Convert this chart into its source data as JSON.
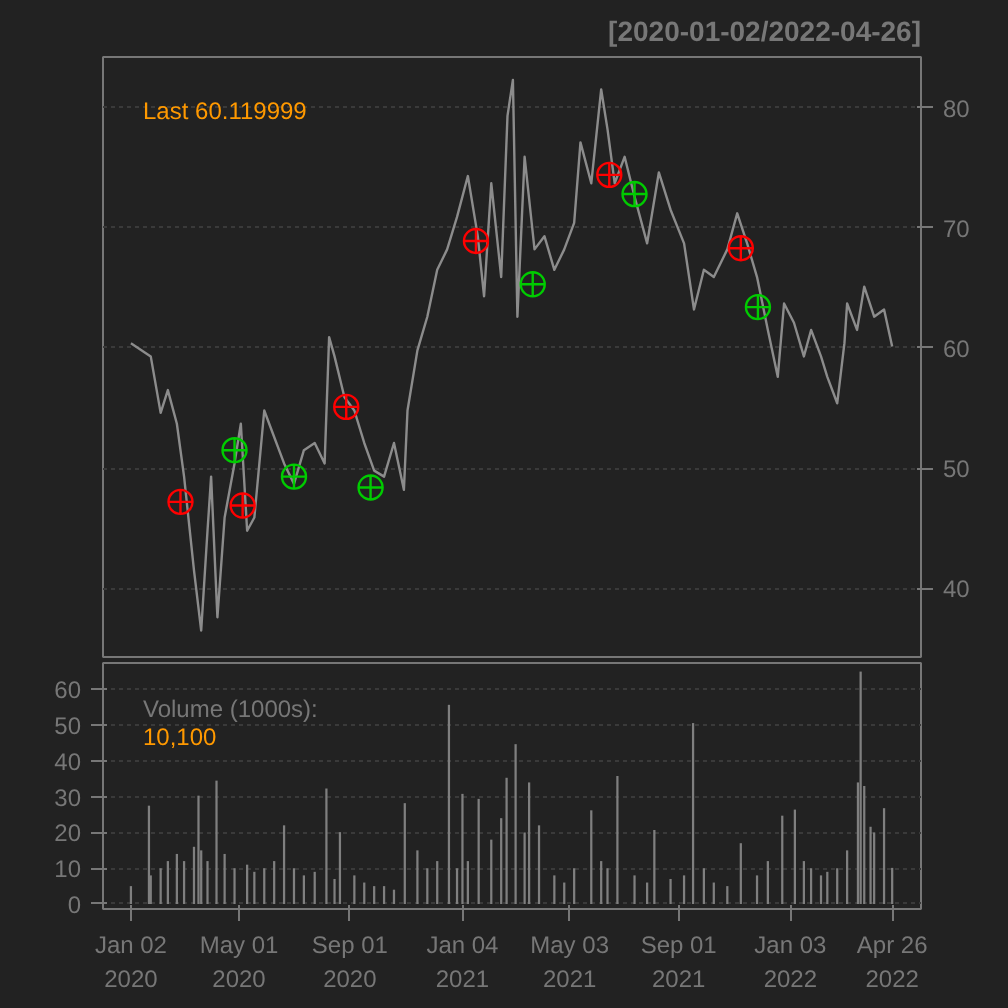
{
  "chart_data": [
    {
      "type": "line",
      "title": "[2020-01-02/2022-04-26]",
      "annotations": [
        "Last 60.119999"
      ],
      "xlim": [
        "2019-12-02",
        "2022-05-28"
      ],
      "ylim": [
        34.3,
        84.2
      ],
      "yticks": [
        40,
        50,
        60,
        70,
        80
      ],
      "grid": "y",
      "tick_labels": "y",
      "series": [
        {
          "type": "line",
          "color": "#8c8c8c",
          "x": [
            "2020-01-02",
            "2020-01-24",
            "2020-02-04",
            "2020-02-12",
            "2020-02-22",
            "2020-03-01",
            "2020-03-12",
            "2020-03-20",
            "2020-03-27",
            "2020-03-31",
            "2020-04-07",
            "2020-04-15",
            "2020-04-26",
            "2020-05-03",
            "2020-05-10",
            "2020-05-18",
            "2020-05-29",
            "2020-06-09",
            "2020-06-20",
            "2020-07-01",
            "2020-07-12",
            "2020-07-24",
            "2020-08-04",
            "2020-08-09",
            "2020-08-15",
            "2020-08-26",
            "2020-09-06",
            "2020-09-17",
            "2020-09-28",
            "2020-10-09",
            "2020-10-20",
            "2020-10-31",
            "2020-11-04",
            "2020-11-15",
            "2020-11-26",
            "2020-12-07",
            "2020-12-18",
            "2020-12-29",
            "2021-01-10",
            "2021-01-21",
            "2021-01-28",
            "2021-02-05",
            "2021-02-16",
            "2021-02-23",
            "2021-03-01",
            "2021-03-06",
            "2021-03-14",
            "2021-03-25",
            "2021-04-05",
            "2021-04-16",
            "2021-04-27",
            "2021-05-08",
            "2021-05-15",
            "2021-05-27",
            "2021-06-07",
            "2021-06-14",
            "2021-06-22",
            "2021-07-03",
            "2021-07-14",
            "2021-07-28",
            "2021-08-10",
            "2021-08-23",
            "2021-09-07",
            "2021-09-18",
            "2021-09-29",
            "2021-10-10",
            "2021-10-25",
            "2021-11-05",
            "2021-11-16",
            "2021-11-27",
            "2021-12-09",
            "2021-12-20",
            "2021-12-27",
            "2022-01-07",
            "2022-01-18",
            "2022-01-26",
            "2022-02-06",
            "2022-02-13",
            "2022-02-24",
            "2022-03-04",
            "2022-03-07",
            "2022-03-18",
            "2022-03-26",
            "2022-04-06",
            "2022-04-17",
            "2022-04-26"
          ],
          "values": [
            60.4,
            59.3,
            54.6,
            56.5,
            53.7,
            49.3,
            41.5,
            36.5,
            44.8,
            49.3,
            37.6,
            45.9,
            50.4,
            53.7,
            44.8,
            45.9,
            54.8,
            52.6,
            50.4,
            48.7,
            51.5,
            52.1,
            50.4,
            60.9,
            59.3,
            55.9,
            54.8,
            52.1,
            49.8,
            49.3,
            52.1,
            48.2,
            54.8,
            59.8,
            62.6,
            66.5,
            68.2,
            70.9,
            74.3,
            69.3,
            64.3,
            73.7,
            65.9,
            79.3,
            82.3,
            62.6,
            75.9,
            68.2,
            69.3,
            66.5,
            68.2,
            70.4,
            77.1,
            73.7,
            81.5,
            78.2,
            73.7,
            75.9,
            72.6,
            68.7,
            74.6,
            71.5,
            68.7,
            63.2,
            66.5,
            65.9,
            68.2,
            71.2,
            68.7,
            65.9,
            61.5,
            57.6,
            63.7,
            62.1,
            59.3,
            61.5,
            59.3,
            57.6,
            55.4,
            60.4,
            63.7,
            61.5,
            65.1,
            62.6,
            63.2,
            60.12
          ]
        },
        {
          "type": "scatter",
          "color": "#ff0000",
          "marker": "circle",
          "x": [
            "2020-02-26",
            "2020-05-05",
            "2020-08-28",
            "2021-01-19",
            "2021-06-16",
            "2021-11-09"
          ],
          "values": [
            47.2,
            46.9,
            55.1,
            68.9,
            74.4,
            68.3
          ]
        },
        {
          "type": "scatter",
          "color": "#00cc00",
          "marker": "circle",
          "x": [
            "2020-04-26",
            "2020-07-01",
            "2020-09-24",
            "2021-03-23",
            "2021-07-14",
            "2021-11-28"
          ],
          "values": [
            51.5,
            49.3,
            48.4,
            65.3,
            72.8,
            63.4
          ]
        }
      ]
    },
    {
      "type": "bar",
      "annotations": [
        "Volume (1000s):",
        "10,100"
      ],
      "xlim": [
        "2019-12-02",
        "2022-05-28"
      ],
      "ylim": [
        -1.4,
        67.4
      ],
      "yticks": [
        0,
        10,
        20,
        30,
        40,
        50,
        60
      ],
      "grid": "y",
      "color": "#7f7f7f",
      "xticks": [
        {
          "value": "2020-01-02",
          "label": "Jan 02\n2020"
        },
        {
          "value": "2020-05-01",
          "label": "May 01\n2020"
        },
        {
          "value": "2020-09-01",
          "label": "Sep 01\n2020"
        },
        {
          "value": "2021-01-04",
          "label": "Jan 04\n2021"
        },
        {
          "value": "2021-05-03",
          "label": "May 03\n2021"
        },
        {
          "value": "2021-09-01",
          "label": "Sep 01\n2021"
        },
        {
          "value": "2022-01-03",
          "label": "Jan 03\n2022"
        },
        {
          "value": "2022-04-26",
          "label": "Apr 26\n2022"
        }
      ],
      "x": [
        "2020-01-02",
        "2020-01-22",
        "2020-01-24",
        "2020-02-04",
        "2020-02-12",
        "2020-02-22",
        "2020-03-01",
        "2020-03-12",
        "2020-03-17",
        "2020-03-20",
        "2020-03-27",
        "2020-04-06",
        "2020-04-15",
        "2020-04-26",
        "2020-05-10",
        "2020-05-18",
        "2020-05-29",
        "2020-06-09",
        "2020-06-20",
        "2020-07-01",
        "2020-07-12",
        "2020-07-24",
        "2020-08-06",
        "2020-08-15",
        "2020-08-21",
        "2020-09-06",
        "2020-09-17",
        "2020-09-28",
        "2020-10-09",
        "2020-10-20",
        "2020-11-01",
        "2020-11-15",
        "2020-11-26",
        "2020-12-07",
        "2020-12-20",
        "2020-12-29",
        "2021-01-04",
        "2021-01-10",
        "2021-01-22",
        "2021-02-05",
        "2021-02-16",
        "2021-02-22",
        "2021-03-04",
        "2021-03-14",
        "2021-03-19",
        "2021-03-30",
        "2021-04-16",
        "2021-04-27",
        "2021-05-08",
        "2021-05-27",
        "2021-06-07",
        "2021-06-14",
        "2021-06-25",
        "2021-07-14",
        "2021-07-28",
        "2021-08-05",
        "2021-08-23",
        "2021-09-07",
        "2021-09-17",
        "2021-09-29",
        "2021-10-10",
        "2021-10-25",
        "2021-11-09",
        "2021-11-27",
        "2021-12-09",
        "2021-12-25",
        "2022-01-08",
        "2022-01-18",
        "2022-01-26",
        "2022-02-06",
        "2022-02-13",
        "2022-02-24",
        "2022-03-07",
        "2022-03-19",
        "2022-03-22",
        "2022-03-26",
        "2022-04-02",
        "2022-04-06",
        "2022-04-17",
        "2022-04-26"
      ],
      "values": [
        5,
        27.5,
        8,
        10,
        12,
        14,
        12,
        16,
        30.3,
        15,
        12,
        34.5,
        14,
        10,
        11,
        9,
        10,
        12,
        22,
        10,
        8,
        9,
        32.3,
        7,
        20.1,
        8,
        6,
        5,
        5,
        4,
        28.2,
        15,
        10,
        12,
        55.7,
        10,
        30.8,
        12,
        29.4,
        18,
        24,
        35.3,
        44.7,
        20,
        34,
        22,
        8,
        6,
        10,
        26.2,
        12,
        10,
        35.8,
        8,
        6,
        20.7,
        7,
        8,
        50.6,
        10,
        6,
        5,
        17,
        8,
        12,
        24.7,
        26.4,
        12,
        10,
        8,
        9,
        10,
        15,
        34,
        65,
        33,
        21.6,
        20,
        26.8,
        10.1
      ]
    }
  ]
}
